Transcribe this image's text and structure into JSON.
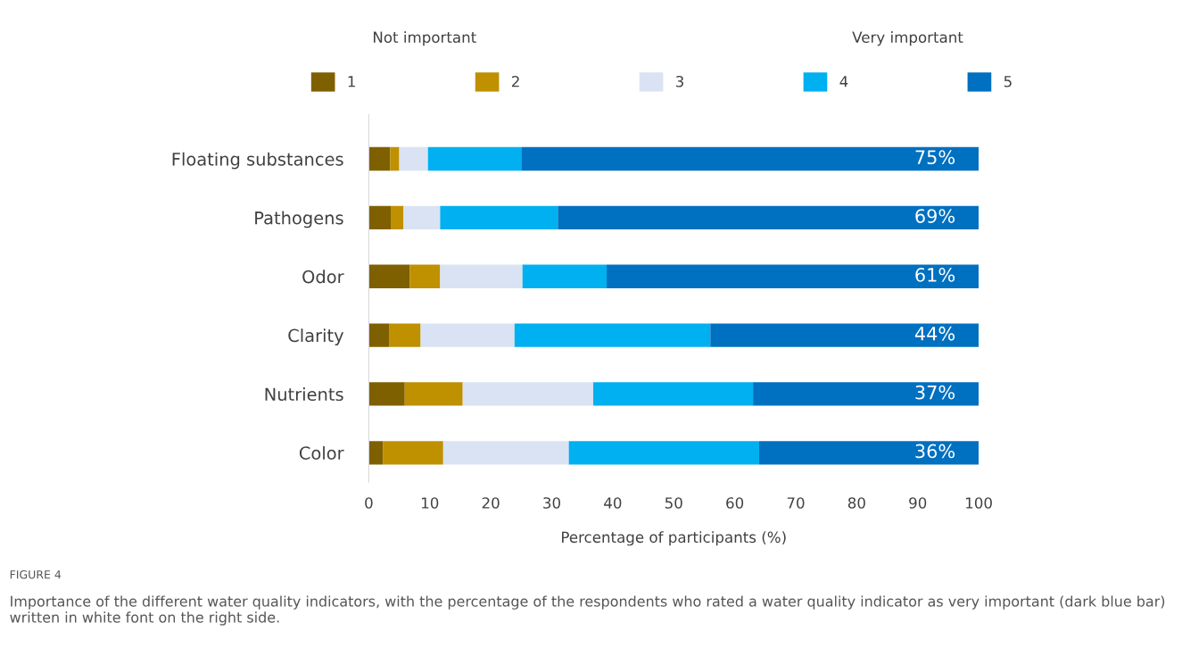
{
  "chart_data": {
    "type": "bar",
    "orientation": "horizontal",
    "stacked": true,
    "categories": [
      "Floating substances",
      "Pathogens",
      "Odor",
      "Clarity",
      "Nutrients",
      "Color"
    ],
    "series": [
      {
        "name": "1",
        "color": "#7f6000",
        "values": [
          3.5,
          3.6,
          6.7,
          3.4,
          5.9,
          2.3
        ]
      },
      {
        "name": "2",
        "color": "#bf9000",
        "values": [
          1.5,
          2.1,
          5.0,
          5.1,
          9.5,
          9.9
        ]
      },
      {
        "name": "3",
        "color": "#dae3f3",
        "values": [
          4.7,
          6.0,
          13.5,
          15.4,
          21.4,
          20.6
        ]
      },
      {
        "name": "4",
        "color": "#00b0f0",
        "values": [
          15.3,
          19.3,
          13.8,
          32.1,
          26.2,
          31.2
        ]
      },
      {
        "name": "5",
        "color": "#0070c0",
        "values": [
          75,
          69,
          61,
          44,
          37,
          36
        ],
        "value_labels": [
          "75%",
          "69%",
          "61%",
          "44%",
          "37%",
          "36%"
        ]
      }
    ],
    "xlabel": "Percentage of participants (%)",
    "xlim": [
      0,
      100
    ],
    "xticks": [
      0,
      10,
      20,
      30,
      40,
      50,
      60,
      70,
      80,
      90,
      100
    ],
    "legend": "top",
    "grid": false,
    "annotations": [
      "Not important",
      "Very important",
      "FIGURE 4",
      "Importance of the different water quality indicators, with the percentage of the respondents who rated a water quality indicator as very important (dark blue bar) written in white font on the right side."
    ]
  }
}
